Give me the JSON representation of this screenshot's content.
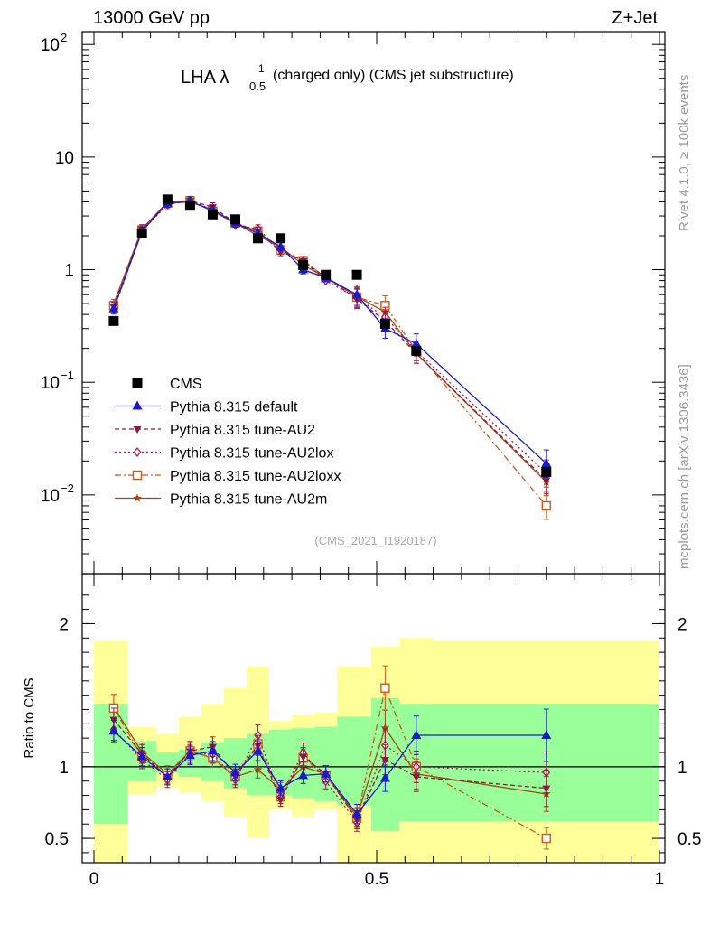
{
  "header": {
    "left": "13000 GeV pp",
    "right": "Z+Jet"
  },
  "title": {
    "prefix": "LHA λ",
    "sup": "1",
    "sub": "0.5",
    "suffix": "(charged only) (CMS jet substructure)"
  },
  "side_text": {
    "top": "Rivet 4.1.0, ≥ 100k events",
    "bottom": "mcplots.cern.ch [arXiv:1306.3436]"
  },
  "analysis_id": "(CMS_2021_I1920187)",
  "colors": {
    "cms": "#000000",
    "default": "#1a1acc",
    "au2": "#8b1a40",
    "au2lox": "#a81a48",
    "au2loxx": "#cc5a1a",
    "au2m": "#9a4a14",
    "band_inner": "#99ff99",
    "band_outer": "#ffff99"
  },
  "chart_data": [
    {
      "type": "line",
      "title": "LHA λ^1_0.5 (charged only) (CMS jet substructure)",
      "xlabel": "",
      "ylabel": "",
      "yscale": "log",
      "xlim": [
        0,
        1
      ],
      "ylim": [
        0.002,
        130
      ],
      "yticks": [
        {
          "value": 100,
          "label": "10",
          "sup": "2"
        },
        {
          "value": 10,
          "label": "10",
          "sup": ""
        },
        {
          "value": 1,
          "label": "1",
          "sup": ""
        },
        {
          "value": 0.1,
          "label": "10",
          "sup": "−1"
        },
        {
          "value": 0.01,
          "label": "10",
          "sup": "−2"
        }
      ],
      "legend_position": "bottom-left",
      "x": [
        0.035,
        0.085,
        0.13,
        0.17,
        0.21,
        0.25,
        0.29,
        0.33,
        0.37,
        0.41,
        0.465,
        0.515,
        0.57,
        0.8
      ],
      "series": [
        {
          "key": "cms",
          "name": "CMS",
          "marker": "square-filled",
          "dash": "",
          "values": [
            0.35,
            2.1,
            4.2,
            3.7,
            3.1,
            2.8,
            1.9,
            1.9,
            1.1,
            0.9,
            0.9,
            0.33,
            0.19,
            0.016
          ]
        },
        {
          "key": "default",
          "name": "Pythia 8.315 default",
          "marker": "triangle-up-filled",
          "dash": "",
          "values": [
            0.45,
            2.2,
            3.9,
            4.0,
            3.4,
            2.6,
            2.1,
            1.6,
            1.0,
            0.85,
            0.6,
            0.3,
            0.22,
            0.019
          ]
        },
        {
          "key": "au2",
          "name": "Pythia 8.315 tune-AU2",
          "marker": "triangle-down-filled",
          "dash": "5,3",
          "values": [
            0.47,
            2.3,
            3.9,
            4.1,
            3.6,
            2.6,
            2.2,
            1.45,
            1.2,
            0.85,
            0.55,
            0.35,
            0.18,
            0.0135
          ]
        },
        {
          "key": "au2lox",
          "name": "Pythia 8.315 tune-AU2lox",
          "marker": "diamond-open",
          "dash": "2,3",
          "values": [
            0.44,
            2.2,
            3.8,
            4.1,
            3.4,
            2.5,
            2.3,
            1.5,
            1.2,
            0.8,
            0.56,
            0.38,
            0.19,
            0.0155
          ]
        },
        {
          "key": "au2loxx",
          "name": "Pythia 8.315 tune-AU2loxx",
          "marker": "square-open",
          "dash": "7,3,2,3",
          "values": [
            0.48,
            2.25,
            3.9,
            4.1,
            3.3,
            2.6,
            2.2,
            1.5,
            1.2,
            0.85,
            0.57,
            0.48,
            0.19,
            0.008
          ]
        },
        {
          "key": "au2m",
          "name": "Pythia 8.315 tune-AU2m",
          "marker": "star",
          "dash": "",
          "values": [
            0.5,
            2.3,
            4.0,
            4.1,
            3.3,
            2.6,
            2.0,
            1.6,
            1.1,
            0.85,
            0.58,
            0.42,
            0.18,
            0.013
          ]
        }
      ]
    },
    {
      "type": "line",
      "title": "",
      "xlabel": "",
      "ylabel": "Ratio to CMS",
      "xlim": [
        0,
        1
      ],
      "ylim": [
        0.33,
        2.35
      ],
      "xticks": [
        {
          "value": 0,
          "label": "0"
        },
        {
          "value": 0.5,
          "label": "0.5"
        },
        {
          "value": 1,
          "label": "1"
        }
      ],
      "yticks": [
        {
          "value": 2,
          "label": "2"
        },
        {
          "value": 1,
          "label": "1"
        },
        {
          "value": 0.5,
          "label": "0.5"
        }
      ],
      "reference_line": 1,
      "bin_edges": [
        0.0,
        0.06,
        0.11,
        0.15,
        0.19,
        0.23,
        0.27,
        0.31,
        0.35,
        0.39,
        0.43,
        0.49,
        0.54,
        0.6,
        1.0
      ],
      "band_inner": [
        [
          0.6,
          1.44
        ],
        [
          0.9,
          1.18
        ],
        [
          0.96,
          1.1
        ],
        [
          0.93,
          1.12
        ],
        [
          0.9,
          1.17
        ],
        [
          0.85,
          1.2
        ],
        [
          0.8,
          1.23
        ],
        [
          0.8,
          1.26
        ],
        [
          0.78,
          1.27
        ],
        [
          0.76,
          1.28
        ],
        [
          0.73,
          1.35
        ],
        [
          0.55,
          1.48
        ],
        [
          0.62,
          1.44
        ],
        [
          0.62,
          1.44
        ]
      ],
      "band_outer": [
        [
          0.33,
          1.88
        ],
        [
          0.81,
          1.28
        ],
        [
          0.86,
          1.23
        ],
        [
          0.82,
          1.35
        ],
        [
          0.76,
          1.44
        ],
        [
          0.65,
          1.55
        ],
        [
          0.5,
          1.7
        ],
        [
          0.7,
          1.32
        ],
        [
          0.65,
          1.36
        ],
        [
          0.7,
          1.38
        ],
        [
          0.33,
          1.7
        ],
        [
          0.33,
          1.84
        ],
        [
          0.33,
          1.9
        ],
        [
          0.33,
          1.88
        ]
      ],
      "x": [
        0.035,
        0.085,
        0.13,
        0.17,
        0.21,
        0.25,
        0.29,
        0.33,
        0.37,
        0.41,
        0.465,
        0.515,
        0.57,
        0.8
      ],
      "series": [
        {
          "key": "default",
          "name": "Pythia 8.315 default",
          "marker": "triangle-up-filled",
          "dash": "",
          "values": [
            1.25,
            1.07,
            0.93,
            1.08,
            1.11,
            0.96,
            1.11,
            0.85,
            0.94,
            0.95,
            0.67,
            0.92,
            1.22,
            1.22
          ]
        },
        {
          "key": "au2",
          "name": "Pythia 8.315 tune-AU2",
          "marker": "triangle-down-filled",
          "dash": "5,3",
          "values": [
            1.33,
            1.09,
            0.93,
            1.11,
            1.14,
            0.93,
            1.15,
            0.77,
            1.07,
            0.95,
            0.63,
            1.05,
            0.93,
            0.85
          ]
        },
        {
          "key": "au2lox",
          "name": "Pythia 8.315 tune-AU2lox",
          "marker": "diamond-open",
          "dash": "2,3",
          "values": [
            1.26,
            1.05,
            0.91,
            1.09,
            1.09,
            0.91,
            1.22,
            0.79,
            1.1,
            0.9,
            0.61,
            1.15,
            1.0,
            0.96
          ]
        },
        {
          "key": "au2loxx",
          "name": "Pythia 8.315 tune-AU2loxx",
          "marker": "square-open",
          "dash": "7,3,2,3",
          "values": [
            1.41,
            1.07,
            0.94,
            1.11,
            1.06,
            0.93,
            1.16,
            0.79,
            1.06,
            0.94,
            0.64,
            1.55,
            1.0,
            0.5
          ]
        },
        {
          "key": "au2m",
          "name": "Pythia 8.315 tune-AU2m",
          "marker": "star",
          "dash": "",
          "values": [
            1.42,
            1.1,
            0.95,
            1.11,
            1.06,
            0.93,
            0.98,
            0.84,
            1.0,
            0.95,
            0.65,
            1.27,
            0.95,
            0.81
          ]
        }
      ]
    }
  ]
}
